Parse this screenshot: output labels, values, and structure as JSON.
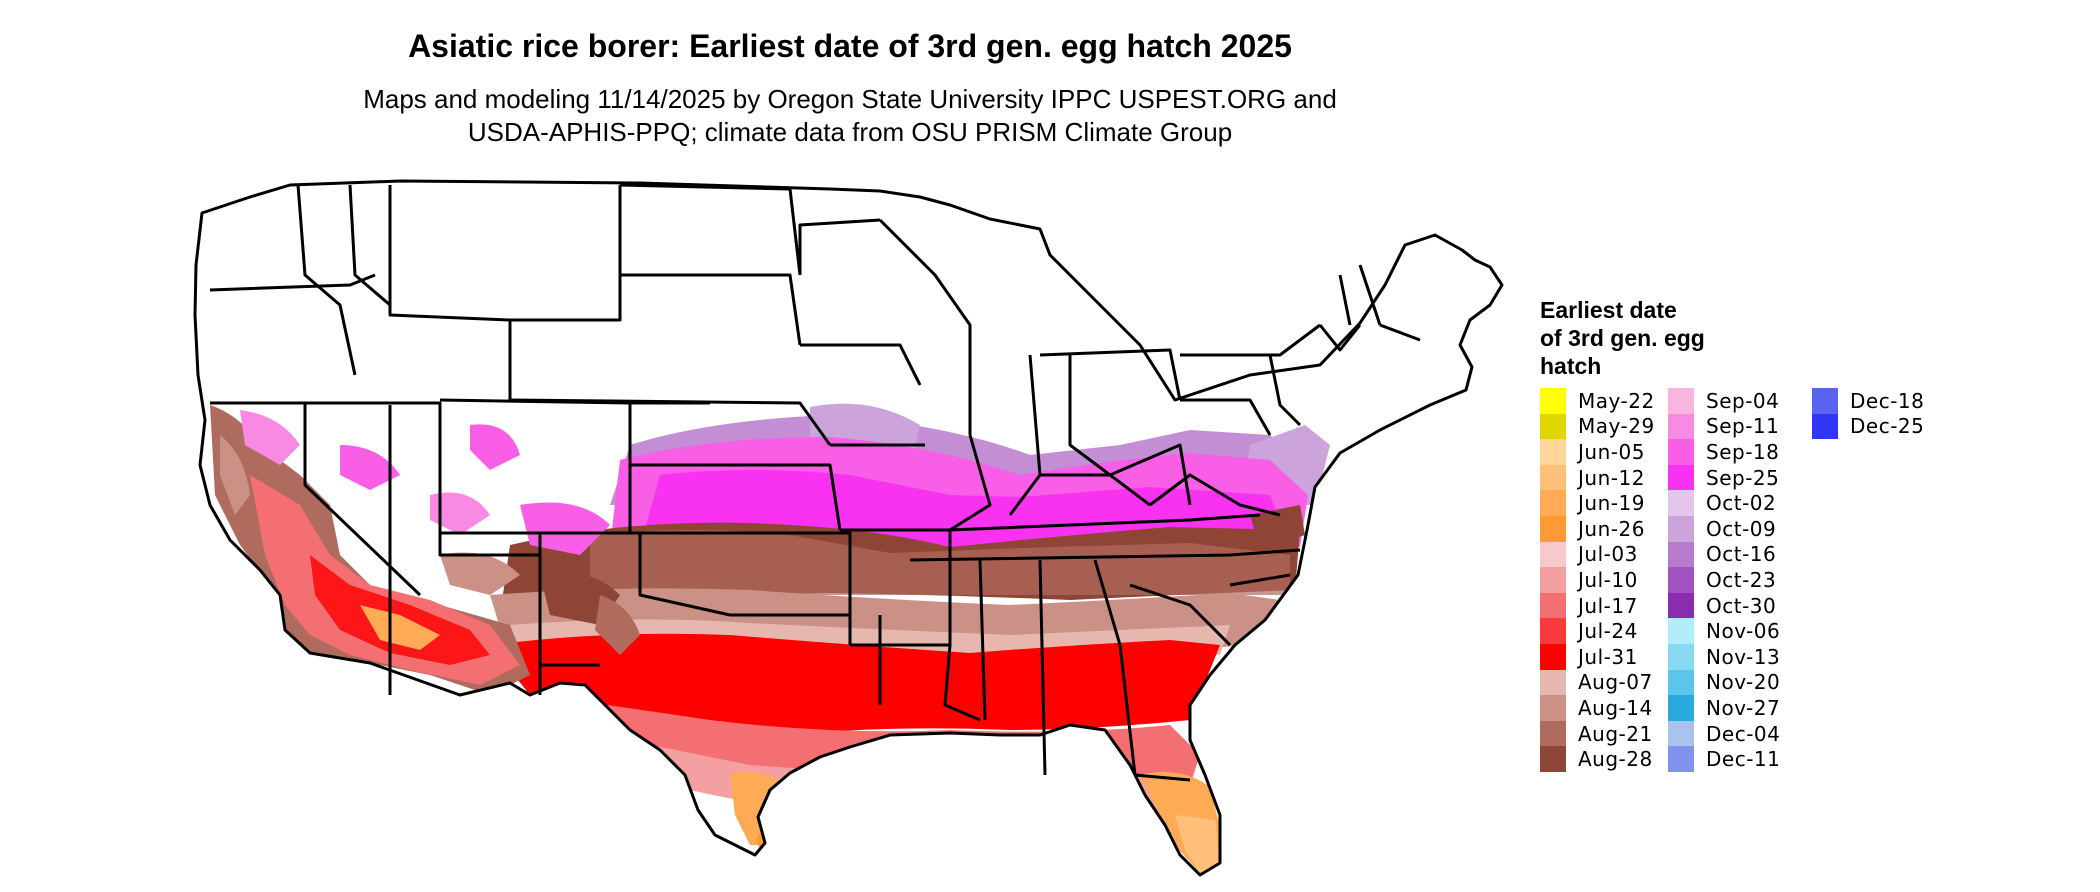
{
  "title": "Asiatic rice borer: Earliest date of 3rd gen. egg hatch 2025",
  "subtitle_line1": "Maps and modeling 11/14/2025 by Oregon State University IPPC USPEST.ORG and",
  "subtitle_line2": "USDA-APHIS-PPQ; climate data from OSU PRISM Climate Group",
  "legend": {
    "title_lines": [
      "Earliest date",
      "of 3rd gen. egg",
      "hatch"
    ],
    "columns": [
      [
        {
          "label": "May-22",
          "color": "#ffff00"
        },
        {
          "label": "May-29",
          "color": "#e0d600"
        },
        {
          "label": "Jun-05",
          "color": "#ffd59a"
        },
        {
          "label": "Jun-12",
          "color": "#ffc07a"
        },
        {
          "label": "Jun-19",
          "color": "#ffaa55"
        },
        {
          "label": "Jun-26",
          "color": "#ff9933"
        },
        {
          "label": "Jul-03",
          "color": "#f7c9cb"
        },
        {
          "label": "Jul-10",
          "color": "#f4a0a3"
        },
        {
          "label": "Jul-17",
          "color": "#f46f72"
        },
        {
          "label": "Jul-24",
          "color": "#f83a3d"
        },
        {
          "label": "Jul-31",
          "color": "#ff0000"
        },
        {
          "label": "Aug-07",
          "color": "#e6b7ae"
        },
        {
          "label": "Aug-14",
          "color": "#cc9186"
        },
        {
          "label": "Aug-21",
          "color": "#b06b5f"
        },
        {
          "label": "Aug-28",
          "color": "#8f4535"
        }
      ],
      [
        {
          "label": "Sep-04",
          "color": "#f9b5df"
        },
        {
          "label": "Sep-11",
          "color": "#f88ae3"
        },
        {
          "label": "Sep-18",
          "color": "#f85ee6"
        },
        {
          "label": "Sep-25",
          "color": "#f832f0"
        },
        {
          "label": "Oct-02",
          "color": "#e4c6ea"
        },
        {
          "label": "Oct-09",
          "color": "#cda3dc"
        },
        {
          "label": "Oct-16",
          "color": "#b87acc"
        },
        {
          "label": "Oct-23",
          "color": "#a053c0"
        },
        {
          "label": "Oct-30",
          "color": "#8a2cb0"
        },
        {
          "label": "Nov-06",
          "color": "#b3ecfa"
        },
        {
          "label": "Nov-13",
          "color": "#88daf2"
        },
        {
          "label": "Nov-20",
          "color": "#5cc6ea"
        },
        {
          "label": "Nov-27",
          "color": "#2aa9dc"
        },
        {
          "label": "Dec-04",
          "color": "#a9c2ee"
        },
        {
          "label": "Dec-11",
          "color": "#7f93ee"
        }
      ],
      [
        {
          "label": "Dec-18",
          "color": "#5a63ef"
        },
        {
          "label": "Dec-25",
          "color": "#2f36f5"
        }
      ]
    ]
  }
}
